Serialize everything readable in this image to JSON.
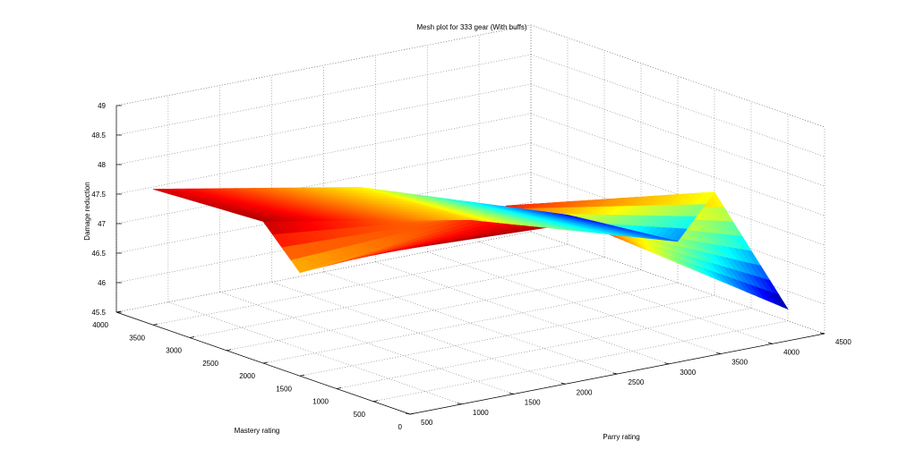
{
  "chart_data": {
    "type": "surface",
    "title": "Mesh plot for 333 gear (With buffs)",
    "xlabel": "Parry rating",
    "ylabel": "Mastery rating",
    "zlabel": "Damage reduction",
    "xlim": [
      500,
      4500
    ],
    "ylim": [
      0,
      4000
    ],
    "zlim": [
      45.5,
      49
    ],
    "x_ticks": [
      500,
      1000,
      1500,
      2000,
      2500,
      3000,
      3500,
      4000,
      4500
    ],
    "y_ticks": [
      0,
      500,
      1000,
      1500,
      2000,
      2500,
      3000,
      3500,
      4000
    ],
    "z_ticks": [
      "45.5",
      "46",
      "46.5",
      "47",
      "47.5",
      "48",
      "48.5",
      "49"
    ],
    "grid": true,
    "colormap": "jet",
    "surface_points": [
      {
        "parry": 500,
        "mastery": 3500,
        "damage_reduction": 47.8
      },
      {
        "parry": 500,
        "mastery": 2000,
        "damage_reduction": 47.9
      },
      {
        "parry": 500,
        "mastery": 500,
        "damage_reduction": 48.0
      },
      {
        "parry": 2500,
        "mastery": 3500,
        "damage_reduction": 47.15
      },
      {
        "parry": 2500,
        "mastery": 1500,
        "damage_reduction": 47.7
      },
      {
        "parry": 2500,
        "mastery": 500,
        "damage_reduction": 47.85
      },
      {
        "parry": 4500,
        "mastery": 3500,
        "damage_reduction": 46.0
      },
      {
        "parry": 4500,
        "mastery": 2000,
        "damage_reduction": 46.2
      },
      {
        "parry": 4500,
        "mastery": 500,
        "damage_reduction": 45.7
      }
    ]
  }
}
